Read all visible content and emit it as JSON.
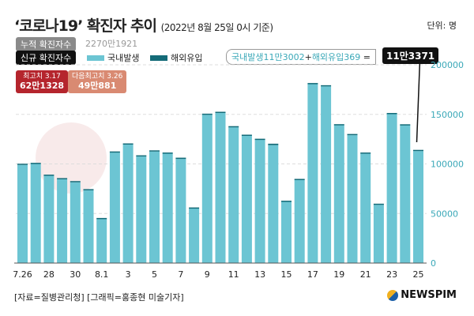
{
  "header": {
    "title": "‘코로나19’ 확진자 추이",
    "subtitle": "(2022년 8월 25일 0시 기준)",
    "unit": "단위: 명"
  },
  "cumulative": {
    "label": "누적 확진자수",
    "value": "2270만1921"
  },
  "new_cases": {
    "label": "신규 확진자수"
  },
  "formula": {
    "domestic": "국내발생11만3002",
    "plus": "+",
    "overseas": "해외유입369",
    "eq": "=",
    "total": "11만3371"
  },
  "peaks": [
    {
      "label": "최고치 3.17",
      "value": "62만1328"
    },
    {
      "label": "다음최고치 3.26",
      "value": "49만881"
    }
  ],
  "footer": {
    "source": "[자료=질병관리청] [그래픽=홍종현 미술기자]",
    "logo": "NEWSPIM"
  },
  "colors": {
    "domestic": "#6cc5d3",
    "overseas": "#146b78",
    "axis": "#3aa8b8"
  },
  "chart_data": {
    "type": "bar",
    "stacked": true,
    "categories": [
      "7.26",
      "27",
      "28",
      "29",
      "30",
      "31",
      "8.1",
      "2",
      "3",
      "4",
      "5",
      "6",
      "7",
      "8",
      "9",
      "10",
      "11",
      "12",
      "13",
      "14",
      "15",
      "16",
      "17",
      "18",
      "19",
      "20",
      "21",
      "22",
      "23",
      "24",
      "25"
    ],
    "tick_labels": [
      "7.26",
      "28",
      "30",
      "8.1",
      "3",
      "5",
      "7",
      "9",
      "11",
      "13",
      "15",
      "17",
      "19",
      "21",
      "23",
      "25"
    ],
    "series": [
      {
        "name": "국내발생",
        "values": [
          99000,
          100000,
          88000,
          84500,
          81500,
          73500,
          44500,
          111500,
          119500,
          107500,
          112500,
          110500,
          105000,
          55000,
          149500,
          151500,
          137000,
          128500,
          124500,
          119000,
          61800,
          84000,
          180500,
          178200,
          139000,
          129000,
          110300,
          58800,
          150200,
          139000,
          113002
        ]
      },
      {
        "name": "해외유입",
        "values": [
          400,
          300,
          400,
          400,
          400,
          300,
          200,
          300,
          400,
          400,
          400,
          200,
          500,
          300,
          400,
          300,
          300,
          200,
          100,
          600,
          300,
          100,
          300,
          400,
          300,
          400,
          400,
          300,
          400,
          200,
          369
        ]
      }
    ],
    "ylim": [
      0,
      200000
    ],
    "yticks": [
      0,
      50000,
      100000,
      150000,
      200000
    ],
    "y_axis_side": "right",
    "grid": true
  }
}
